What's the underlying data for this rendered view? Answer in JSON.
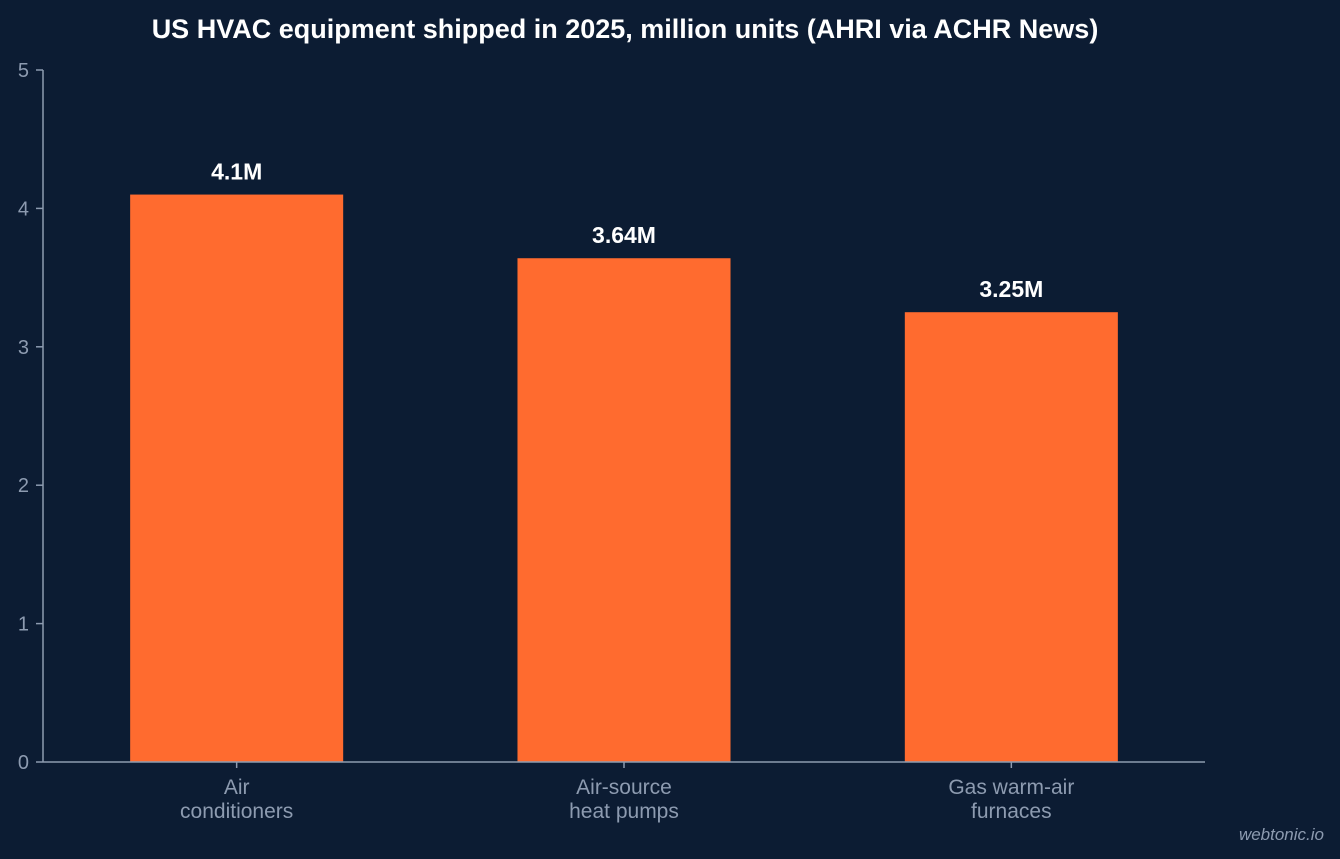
{
  "chart_data": {
    "type": "bar",
    "title": "US HVAC equipment shipped in 2025, million units (AHRI via ACHR News)",
    "categories": [
      [
        "Air",
        "conditioners"
      ],
      [
        "Air-source",
        "heat pumps"
      ],
      [
        "Gas warm-air",
        "furnaces"
      ]
    ],
    "values": [
      4.1,
      3.64,
      3.25
    ],
    "value_labels": [
      "4.1M",
      "3.64M",
      "3.25M"
    ],
    "ylim": [
      0,
      5
    ],
    "yticks": [
      0,
      1,
      2,
      3,
      4,
      5
    ],
    "xlabel": "",
    "ylabel": "",
    "grid": false,
    "bar_color": "#ff6b2f",
    "background_color": "#0c1c33"
  },
  "watermark": "webtonic.io"
}
